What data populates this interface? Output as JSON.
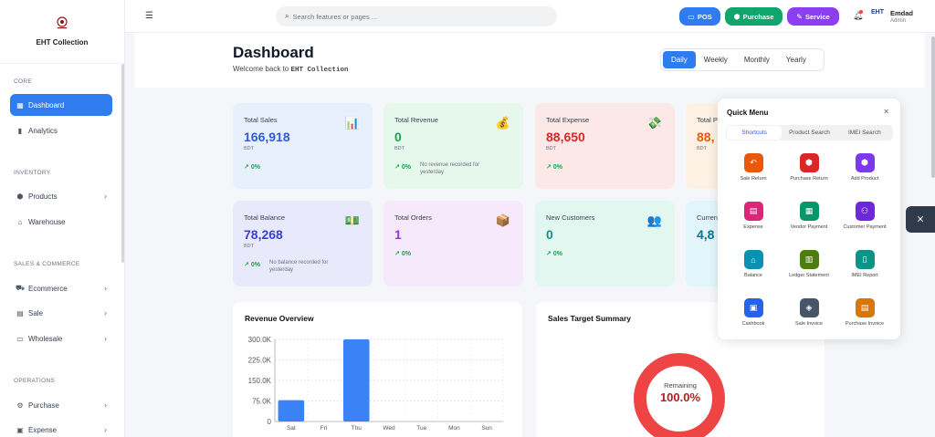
{
  "brand": {
    "name": "EHT Collection"
  },
  "sidebar": {
    "sections": [
      "CORE",
      "INVENTORY",
      "SALES & COMMERCE",
      "OPERATIONS"
    ],
    "items": [
      {
        "label": "Dashboard",
        "icon": "grid-icon",
        "active": true
      },
      {
        "label": "Analytics",
        "icon": "bar-chart-icon"
      },
      {
        "label": "Products",
        "icon": "boxes-icon",
        "chevron": true
      },
      {
        "label": "Warehouse",
        "icon": "warehouse-icon"
      },
      {
        "label": "Ecommerce",
        "icon": "cart-icon",
        "chevron": true
      },
      {
        "label": "Sale",
        "icon": "receipt-icon",
        "chevron": true
      },
      {
        "label": "Wholesale",
        "icon": "folder-icon",
        "chevron": true
      },
      {
        "label": "Purchase",
        "icon": "gear-icon",
        "chevron": true
      },
      {
        "label": "Expense",
        "icon": "doc-icon",
        "chevron": true
      }
    ]
  },
  "topbar": {
    "search_placeholder": "Search features or pages ...",
    "buttons": [
      {
        "label": "POS",
        "color": "#2f7bf0"
      },
      {
        "label": "Purchase",
        "color": "#10a56d"
      },
      {
        "label": "Service",
        "color": "#8b3ff0"
      }
    ],
    "user": {
      "name": "Emdad",
      "role": "Admin",
      "avatar_text": "EHT"
    }
  },
  "page": {
    "title": "Dashboard",
    "subtitle": "Welcome back to",
    "company": "EHT Collection",
    "periods": [
      "Daily",
      "Weekly",
      "Monthly",
      "Yearly"
    ],
    "active_period": "Daily"
  },
  "stats": [
    {
      "title": "Total Sales",
      "value": "166,918",
      "unit": "BDT",
      "growth": "0%",
      "note": "",
      "color": "#2f5bd8",
      "bg": "#e8effd",
      "icon": "chart-icon",
      "glyph": "📊"
    },
    {
      "title": "Total Revenue",
      "value": "0",
      "unit": "BDT",
      "growth": "0%",
      "note": "No revenue recorded for yesterday",
      "color": "#16a34a",
      "bg": "#e6f7ec",
      "icon": "money-bag-icon",
      "glyph": "💰"
    },
    {
      "title": "Total Expense",
      "value": "88,650",
      "unit": "BDT",
      "growth": "0%",
      "note": "",
      "color": "#dc2626",
      "bg": "#fde8e8",
      "icon": "money-wings-icon",
      "glyph": "💸"
    },
    {
      "title": "Total P",
      "value": "88,",
      "unit": "BDT",
      "growth": "",
      "note": "",
      "color": "#ea580c",
      "bg": "#fdf1e3",
      "icon": "profit-icon",
      "glyph": ""
    },
    {
      "title": "Total Balance",
      "value": "78,268",
      "unit": "BDT",
      "growth": "0%",
      "note": "No balance recorded for yesterday",
      "color": "#3b3fcf",
      "bg": "#e8eafc",
      "icon": "banknote-icon",
      "glyph": "💵"
    },
    {
      "title": "Total Orders",
      "value": "1",
      "unit": "",
      "growth": "0%",
      "note": "",
      "color": "#9333ea",
      "bg": "#f5e9fb",
      "icon": "package-icon",
      "glyph": "📦"
    },
    {
      "title": "New Customers",
      "value": "0",
      "unit": "",
      "growth": "0%",
      "note": "",
      "color": "#0d9488",
      "bg": "#e3f7f1",
      "icon": "users-icon",
      "glyph": "👥"
    },
    {
      "title": "Curren",
      "value": "4,8",
      "unit": "",
      "growth": "",
      "note": "",
      "color": "#0e7490",
      "bg": "#e1f6fa",
      "icon": "stock-icon",
      "glyph": ""
    }
  ],
  "revenue": {
    "title": "Revenue Overview",
    "chart_data": {
      "type": "bar",
      "categories": [
        "Sat",
        "Fri",
        "Thu",
        "Wed",
        "Tue",
        "Mon",
        "Sun"
      ],
      "values": [
        78000,
        0,
        300000,
        0,
        0,
        0,
        0
      ],
      "ylim": [
        0,
        300000
      ],
      "yticks": [
        "0",
        "75.0K",
        "150.0K",
        "225.0K",
        "300.0K"
      ],
      "grid": true,
      "color": "#3b82f6"
    }
  },
  "target": {
    "title": "Sales Target Summary",
    "label": "Remaining",
    "value": "100.0%",
    "chart_data": {
      "type": "pie",
      "values": [
        100
      ],
      "color": "#ef4444"
    }
  },
  "quick_menu": {
    "title": "Quick Menu",
    "tabs": [
      "Shortcuts",
      "Product Search",
      "IMEI Search"
    ],
    "shortcuts": [
      {
        "label": "Sale Return",
        "color": "#ea580c",
        "icon": "undo-icon",
        "glyph": "↶"
      },
      {
        "label": "Purchase Return",
        "color": "#dc2626",
        "icon": "cube-icon",
        "glyph": "⬢"
      },
      {
        "label": "Add Product",
        "color": "#7c3aed",
        "icon": "box-plus-icon",
        "glyph": "⬢"
      },
      {
        "label": "Expense",
        "color": "#db2777",
        "icon": "receipt-icon",
        "glyph": "▤"
      },
      {
        "label": "Vendor Payment",
        "color": "#059669",
        "icon": "store-icon",
        "glyph": "▦"
      },
      {
        "label": "Customer Payment",
        "color": "#6d28d9",
        "icon": "people-icon",
        "glyph": "⚇"
      },
      {
        "label": "Balance",
        "color": "#0891b2",
        "icon": "bank-icon",
        "glyph": "⌂"
      },
      {
        "label": "Ledger Statement",
        "color": "#4d7c0f",
        "icon": "book-icon",
        "glyph": "▥"
      },
      {
        "label": "IMEI Report",
        "color": "#0d9488",
        "icon": "phone-icon",
        "glyph": "▯"
      },
      {
        "label": "Cashbook",
        "color": "#2563eb",
        "icon": "wallet-icon",
        "glyph": "▣"
      },
      {
        "label": "Sale Invoice",
        "color": "#475569",
        "icon": "invoice-icon",
        "glyph": "◈"
      },
      {
        "label": "Purchase Invoice",
        "color": "#d97706",
        "icon": "document-icon",
        "glyph": "▤"
      }
    ]
  }
}
